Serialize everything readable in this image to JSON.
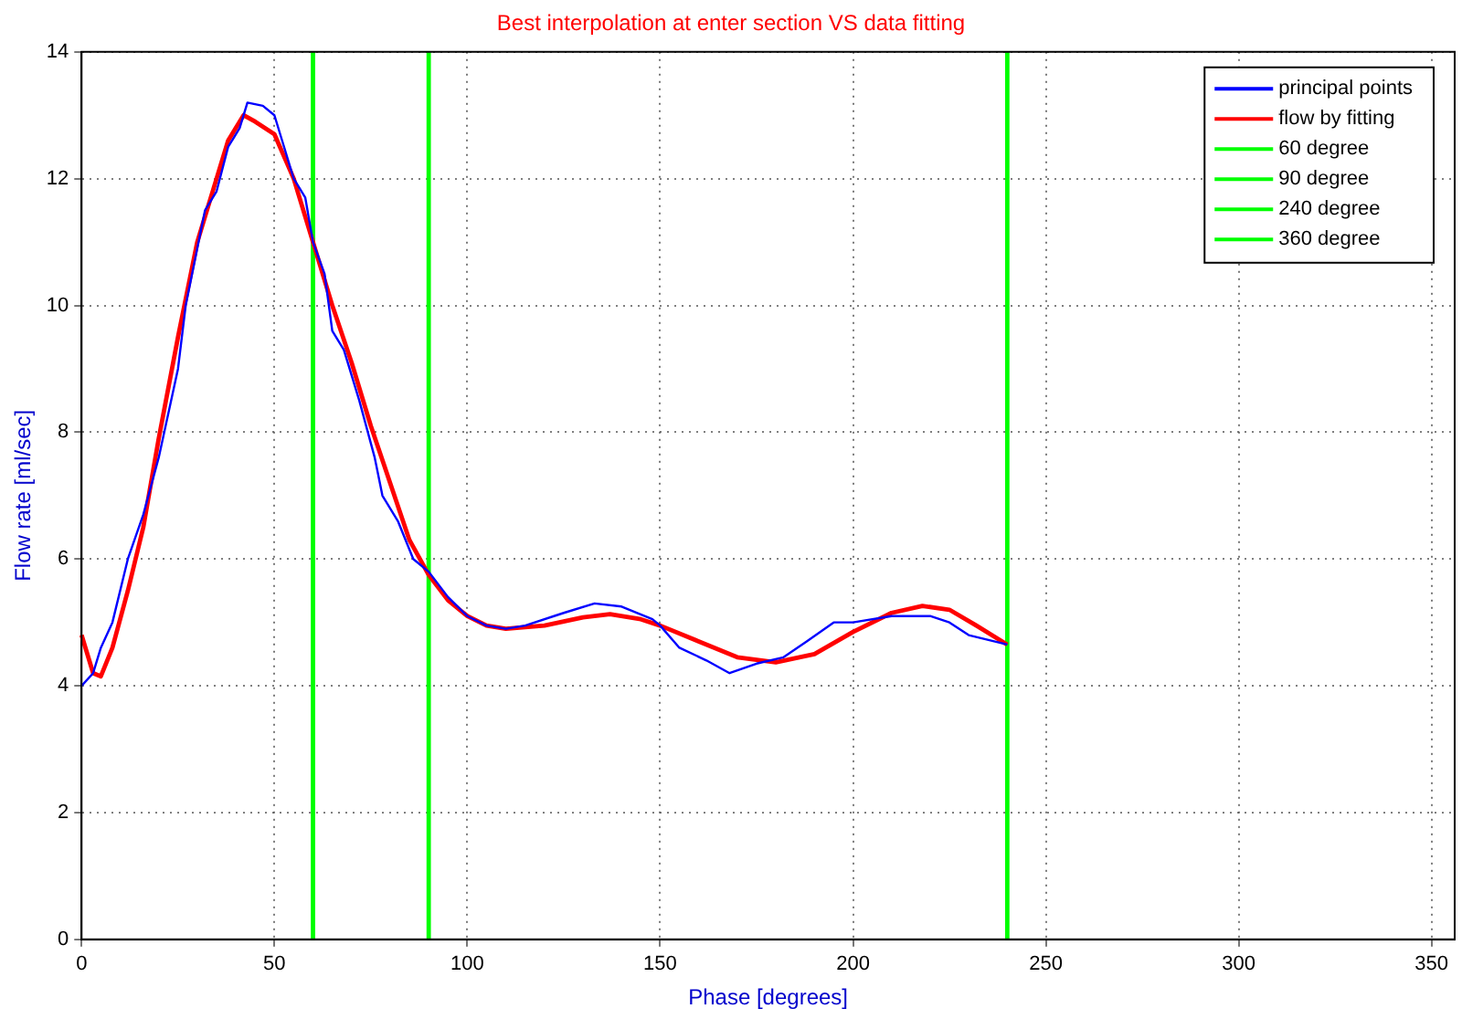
{
  "chart_data": {
    "type": "line",
    "title": "Best interpolation at enter section VS data fitting",
    "xlabel": "Phase [degrees]",
    "ylabel": "Flow rate [ml/sec]",
    "xlim": [
      0,
      356
    ],
    "ylim": [
      0,
      14
    ],
    "xticks": [
      0,
      50,
      100,
      150,
      200,
      250,
      300,
      350
    ],
    "yticks": [
      0,
      2,
      4,
      6,
      8,
      10,
      12,
      14
    ],
    "grid": true,
    "legend": "top right",
    "marker": "none",
    "line_style": "solid",
    "series": [
      {
        "name": "principal points",
        "color": "#0000ff",
        "x": [
          0,
          3,
          5,
          8,
          12,
          16,
          20,
          25,
          27,
          30,
          32,
          35,
          38,
          41,
          43,
          47,
          50,
          52,
          55,
          58,
          60,
          63,
          65,
          68,
          72,
          76,
          78,
          82,
          86,
          90,
          95,
          100,
          105,
          110,
          115,
          125,
          133,
          140,
          148,
          150,
          155,
          162,
          168,
          175,
          182,
          188,
          195,
          200,
          210,
          215,
          220,
          225,
          230,
          240
        ],
        "values": [
          4.0,
          4.2,
          4.6,
          5.0,
          6.0,
          6.7,
          7.6,
          9.0,
          10.0,
          10.9,
          11.5,
          11.8,
          12.5,
          12.8,
          13.2,
          13.15,
          13.0,
          12.6,
          12.0,
          11.7,
          11.0,
          10.5,
          9.6,
          9.3,
          8.5,
          7.6,
          7.0,
          6.6,
          6.0,
          5.8,
          5.4,
          5.1,
          4.95,
          4.9,
          4.95,
          5.15,
          5.3,
          5.25,
          5.05,
          4.95,
          4.6,
          4.4,
          4.2,
          4.35,
          4.45,
          4.7,
          5.0,
          5.0,
          5.1,
          5.1,
          5.1,
          5.0,
          4.8,
          4.65
        ]
      },
      {
        "name": "flow by fitting",
        "color": "#ff0000",
        "x": [
          0,
          3,
          5,
          8,
          12,
          16,
          20,
          25,
          30,
          35,
          38,
          42,
          45,
          50,
          55,
          60,
          65,
          70,
          75,
          80,
          85,
          90,
          95,
          100,
          105,
          110,
          120,
          130,
          137,
          145,
          150,
          160,
          170,
          180,
          190,
          200,
          210,
          218,
          225,
          232,
          240
        ],
        "values": [
          4.8,
          4.2,
          4.15,
          4.6,
          5.5,
          6.5,
          7.9,
          9.5,
          11.0,
          12.0,
          12.6,
          13.0,
          12.9,
          12.7,
          12.0,
          11.0,
          10.0,
          9.1,
          8.1,
          7.2,
          6.3,
          5.75,
          5.35,
          5.1,
          4.95,
          4.9,
          4.95,
          5.08,
          5.13,
          5.05,
          4.95,
          4.7,
          4.45,
          4.37,
          4.5,
          4.85,
          5.15,
          5.26,
          5.2,
          4.95,
          4.65
        ]
      },
      {
        "name": "60 degree",
        "color": "#00ff00",
        "x": [
          60,
          60
        ],
        "values": [
          0,
          14
        ]
      },
      {
        "name": "90 degree",
        "color": "#00ff00",
        "x": [
          90,
          90
        ],
        "values": [
          0,
          14
        ]
      },
      {
        "name": "240 degree",
        "color": "#00ff00",
        "x": [
          240,
          240
        ],
        "values": [
          0,
          14
        ]
      },
      {
        "name": "360 degree",
        "color": "#00ff00",
        "x": [
          null,
          null
        ],
        "values": [
          null,
          null
        ]
      }
    ]
  }
}
